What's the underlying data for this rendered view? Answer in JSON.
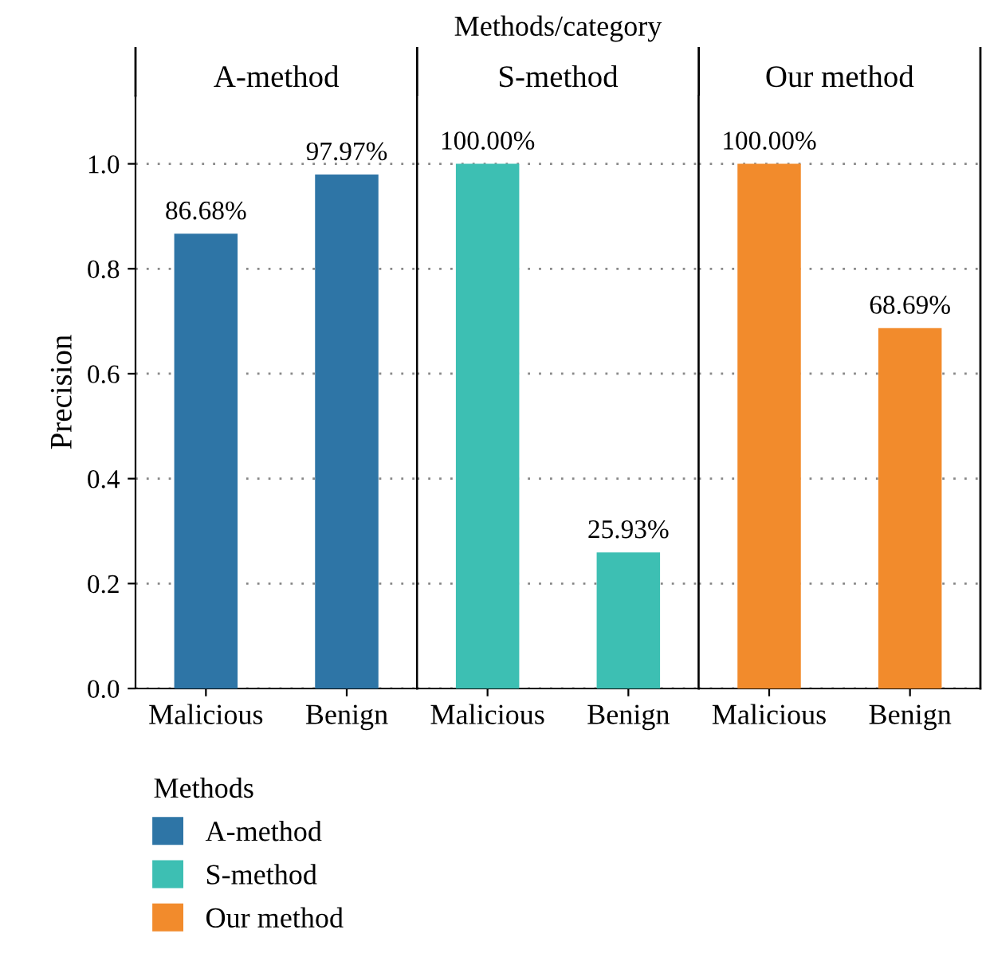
{
  "chart_data": [
    {
      "type": "bar",
      "title": "A-method",
      "ylabel": "Precision",
      "annotations": [
        "Methods/category"
      ],
      "legend_title": "Methods",
      "legend": "bottom",
      "grid": "y",
      "categories": [
        "Malicious",
        "Benign"
      ],
      "ylim": [
        0,
        1.13
      ],
      "yticks": [
        {
          "value": 0,
          "label": "0.0"
        },
        0.2,
        0.4,
        0.6,
        0.8,
        {
          "value": 1,
          "label": "1.0"
        }
      ],
      "series": [
        {
          "name": "A-method",
          "color": "#2e75a6",
          "values": [
            0.8668,
            0.9797
          ],
          "value_labels": [
            "86.68%",
            "97.97%"
          ]
        }
      ]
    },
    {
      "type": "bar",
      "title": "S-method",
      "legend": "bottom",
      "grid": "y",
      "tick_labels": "x",
      "categories": [
        "Malicious",
        "Benign"
      ],
      "ylim": [
        0,
        1.13
      ],
      "series": [
        {
          "name": "S-method",
          "color": "#3dbfb3",
          "values": [
            1.0,
            0.2593
          ],
          "value_labels": [
            "100.00%",
            "25.93%"
          ]
        }
      ]
    },
    {
      "type": "bar",
      "title": "Our method",
      "legend": "bottom",
      "grid": "y",
      "tick_labels": "x",
      "categories": [
        "Malicious",
        "Benign"
      ],
      "ylim": [
        0,
        1.13
      ],
      "series": [
        {
          "name": "Our method",
          "color": "#f28b2c",
          "values": [
            1.0,
            0.6869
          ],
          "value_labels": [
            "100.00%",
            "68.69%"
          ]
        }
      ]
    }
  ]
}
